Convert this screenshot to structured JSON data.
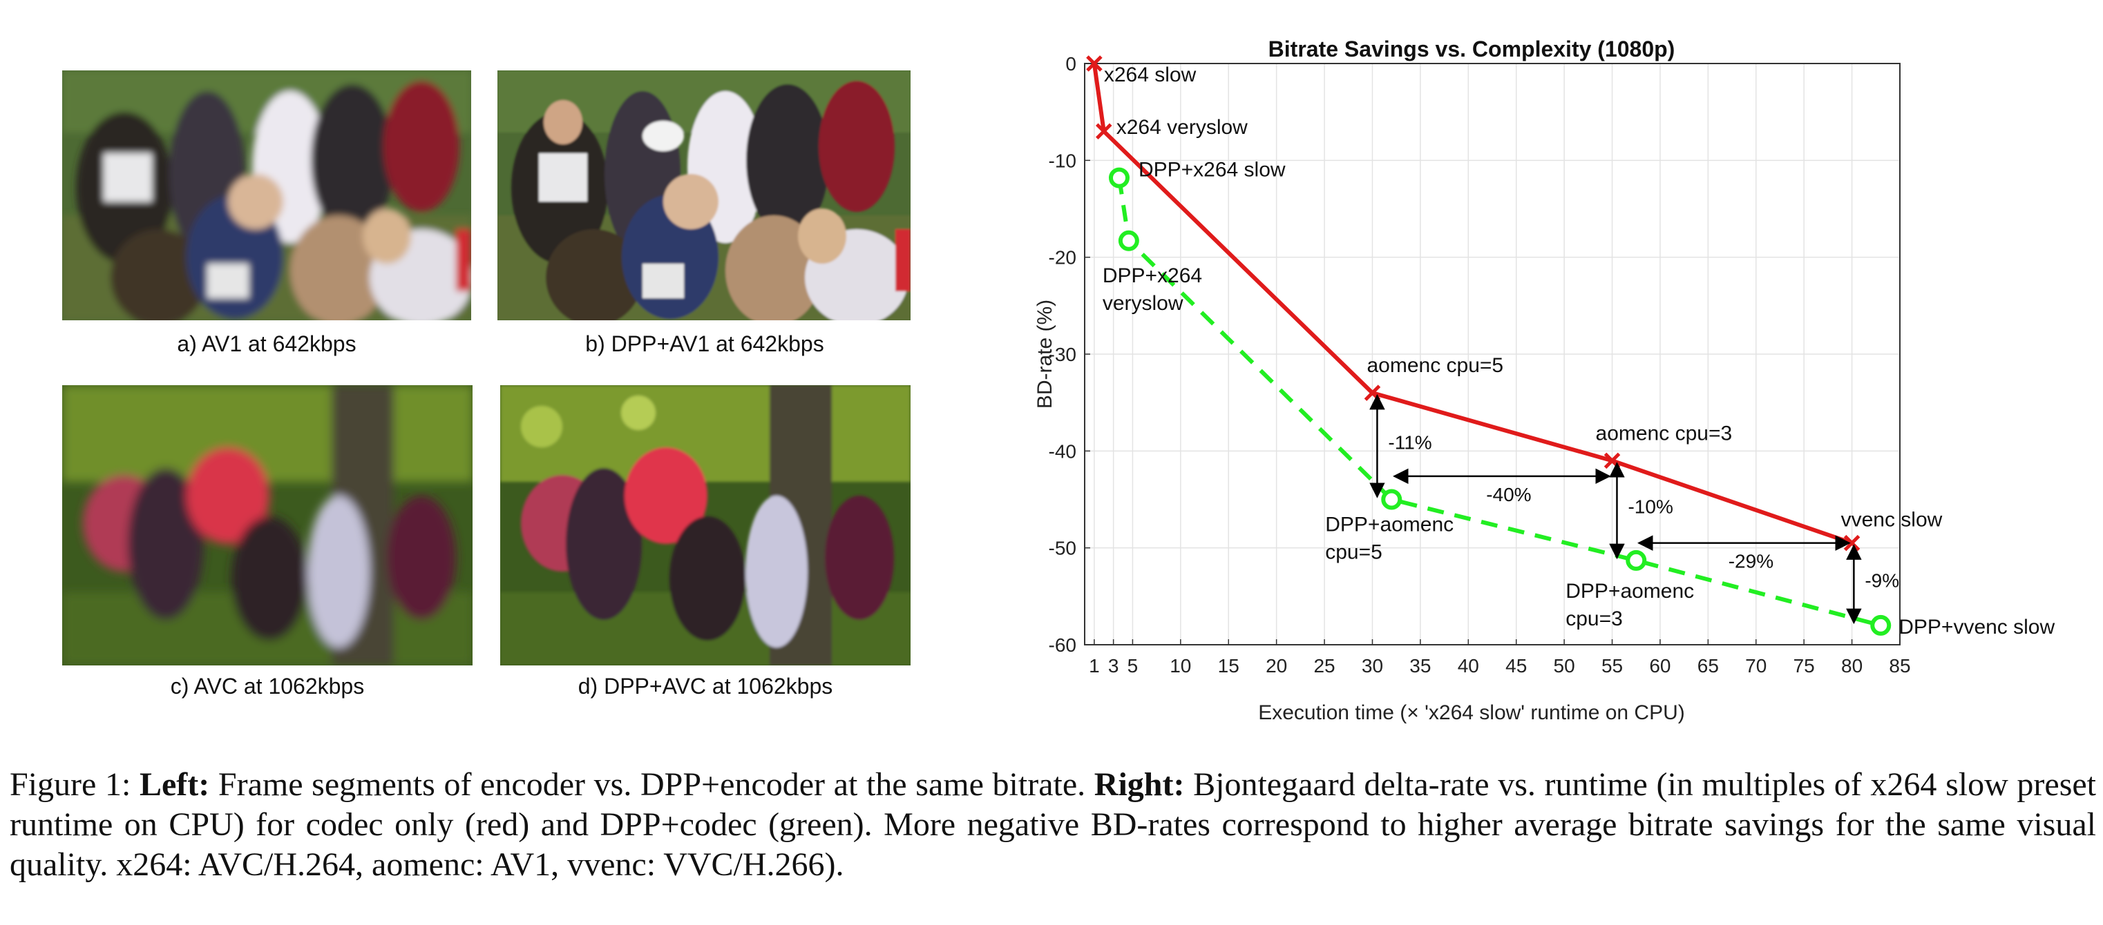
{
  "panels": [
    {
      "id": "a",
      "caption": "a) AV1 at 642kbps",
      "scene": "runners",
      "quality": "blurry"
    },
    {
      "id": "b",
      "caption": "b) DPP+AV1 at 642kbps",
      "scene": "runners",
      "quality": "sharp"
    },
    {
      "id": "c",
      "caption": "c) AVC at 1062kbps",
      "scene": "forest",
      "quality": "blurry"
    },
    {
      "id": "d",
      "caption": "d) DPP+AVC at 1062kbps",
      "scene": "forest",
      "quality": "sharp"
    }
  ],
  "chart_data": {
    "type": "line",
    "title": "Bitrate Savings vs. Complexity (1080p)",
    "xlabel": "Execution time (× 'x264 slow' runtime on CPU)",
    "ylabel": "BD-rate (%)",
    "xlim": [
      0,
      85
    ],
    "ylim": [
      -60,
      0
    ],
    "xticks": [
      1,
      3,
      5,
      10,
      15,
      20,
      25,
      30,
      35,
      40,
      45,
      50,
      55,
      60,
      65,
      70,
      75,
      80,
      85
    ],
    "yticks": [
      0,
      -10,
      -20,
      -30,
      -40,
      -50,
      -60
    ],
    "grid": true,
    "series": [
      {
        "color": "#e01b1b",
        "marker": "x",
        "line": "solid",
        "points": [
          {
            "x": 1,
            "y": 0,
            "label": "x264 slow"
          },
          {
            "x": 2,
            "y": -7,
            "label": "x264 veryslow"
          },
          {
            "x": 30,
            "y": -34,
            "label": "aomenc cpu=5"
          },
          {
            "x": 55,
            "y": -41,
            "label": "aomenc cpu=3"
          },
          {
            "x": 80,
            "y": -49.5,
            "label": "vvenc slow"
          }
        ]
      },
      {
        "color": "#22ee22",
        "marker": "o",
        "line": "dashed",
        "points": [
          {
            "x": 3.6,
            "y": -11.8,
            "label": "DPP+x264 slow"
          },
          {
            "x": 4.6,
            "y": -18.3,
            "label": "DPP+x264 veryslow"
          },
          {
            "x": 32,
            "y": -45,
            "label": "DPP+aomenc cpu=5"
          },
          {
            "x": 57.5,
            "y": -51.3,
            "label": "DPP+aomenc cpu=3"
          },
          {
            "x": 83,
            "y": -58,
            "label": "DPP+vvenc slow"
          }
        ]
      }
    ],
    "annotations": [
      {
        "text": "-11%",
        "type": "vertical",
        "x": 30.5,
        "from": -34,
        "to": -45
      },
      {
        "text": "-40%",
        "type": "horizontal",
        "y": -42.6,
        "from": 32,
        "to": 55
      },
      {
        "text": "-10%",
        "type": "vertical",
        "x": 55.5,
        "from": -41,
        "to": -51.3
      },
      {
        "text": "-29%",
        "type": "horizontal",
        "y": -49.5,
        "from": 57.5,
        "to": 80
      },
      {
        "text": "-9%",
        "type": "vertical",
        "x": 80.2,
        "from": -49.5,
        "to": -58
      }
    ]
  },
  "caption": {
    "figure": "Figure 1: ",
    "left_bold": "Left:",
    "left_text": " Frame segments of encoder vs. DPP+encoder at the same bitrate. ",
    "right_bold": "Right:",
    "right_text": " Bjontegaard delta-rate vs. runtime (in multiples of x264 slow preset runtime on CPU) for codec only (red) and DPP+codec (green). More negative BD-rates correspond to higher average bitrate savings for the same visual quality. x264: AVC/H.264, aomenc: AV1, vvenc: VVC/H.266)."
  }
}
